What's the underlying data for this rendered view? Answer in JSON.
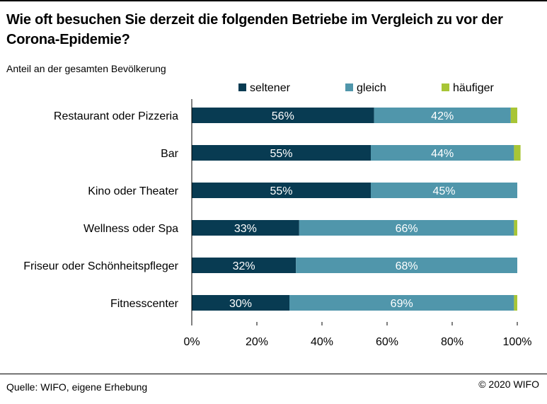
{
  "title": "Wie oft besuchen Sie derzeit die folgenden Betriebe im Vergleich zu vor der Corona-Epidemie?",
  "subtitle": "Anteil an der gesamten Bevölkerung",
  "source": "Quelle: WIFO, eigene Erhebung",
  "copyright": "© 2020 WIFO",
  "colors": {
    "seltener": "#083b52",
    "gleich": "#5096ab",
    "haeufiger": "#a8c536",
    "axis": "#000000",
    "label_text": "#ffffff"
  },
  "chart_data": {
    "type": "bar",
    "orientation": "horizontal",
    "stacked": true,
    "categories": [
      "Restaurant oder Pizzeria",
      "Bar",
      "Kino oder Theater",
      "Wellness oder Spa",
      "Friseur oder Schönheitspfleger",
      "Fitnesscenter"
    ],
    "series": [
      {
        "name": "seltener",
        "color_key": "seltener",
        "values": [
          56,
          55,
          55,
          33,
          32,
          30
        ],
        "labels": [
          "56%",
          "55%",
          "55%",
          "33%",
          "32%",
          "30%"
        ]
      },
      {
        "name": "gleich",
        "color_key": "gleich",
        "values": [
          42,
          44,
          45,
          66,
          68,
          69
        ],
        "labels": [
          "42%",
          "44%",
          "45%",
          "66%",
          "68%",
          "69%"
        ]
      },
      {
        "name": "häufiger",
        "color_key": "haeufiger",
        "values": [
          2,
          2,
          0,
          1,
          0,
          1
        ],
        "labels": [
          "",
          "",
          "",
          "",
          "",
          ""
        ]
      }
    ],
    "xlim": [
      0,
      100
    ],
    "x_ticks": [
      0,
      20,
      40,
      60,
      80,
      100
    ],
    "x_tick_labels": [
      "0%",
      "20%",
      "40%",
      "60%",
      "80%",
      "100%"
    ],
    "grid": false,
    "legend_position": "top"
  }
}
